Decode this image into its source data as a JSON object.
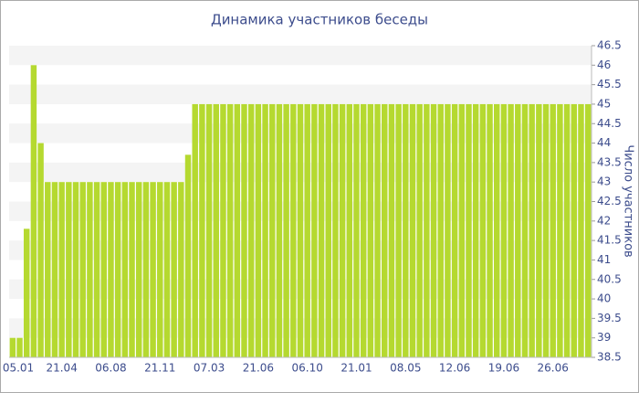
{
  "chart_data": {
    "type": "bar",
    "title": "Динамика участников беседы",
    "y_label": "Число участников",
    "categories": [
      "05.01",
      null,
      null,
      null,
      null,
      null,
      null,
      "21.04",
      null,
      null,
      null,
      null,
      null,
      null,
      "06.08",
      null,
      null,
      null,
      null,
      null,
      null,
      "21.11",
      null,
      null,
      null,
      null,
      null,
      null,
      "07.03",
      null,
      null,
      null,
      null,
      null,
      null,
      "21.06",
      null,
      null,
      null,
      null,
      null,
      null,
      "06.10",
      null,
      null,
      null,
      null,
      null,
      null,
      "21.01",
      null,
      null,
      null,
      null,
      null,
      null,
      "08.05",
      null,
      null,
      null,
      null,
      null,
      null,
      "12.06",
      null,
      null,
      null,
      null,
      null,
      null,
      "19.06",
      null,
      null,
      null,
      null,
      null,
      null,
      "26.06",
      null,
      null,
      null,
      null,
      null
    ],
    "values": [
      39,
      39,
      41.8,
      46,
      44,
      43,
      43,
      43,
      43,
      43,
      43,
      43,
      43,
      43,
      43,
      43,
      43,
      43,
      43,
      43,
      43,
      43,
      43,
      43,
      43,
      43.7,
      45,
      45,
      45,
      45,
      45,
      45,
      45,
      45,
      45,
      45,
      45,
      45,
      45,
      45,
      45,
      45,
      45,
      45,
      45,
      45,
      45,
      45,
      45,
      45,
      45,
      45,
      45,
      45,
      45,
      45,
      45,
      45,
      45,
      45,
      45,
      45,
      45,
      45,
      45,
      45,
      45,
      45,
      45,
      45,
      45,
      45,
      45,
      45,
      45,
      45,
      45,
      45,
      45,
      45,
      45,
      45,
      45
    ],
    "color": "#b5d930",
    "ylim": [
      38.5,
      46.5
    ],
    "yticks": [
      38.5,
      39,
      39.5,
      40,
      40.5,
      41,
      41.5,
      42,
      42.5,
      43,
      43.5,
      44,
      44.5,
      45,
      45.5,
      46,
      46.5
    ],
    "grid": true
  }
}
